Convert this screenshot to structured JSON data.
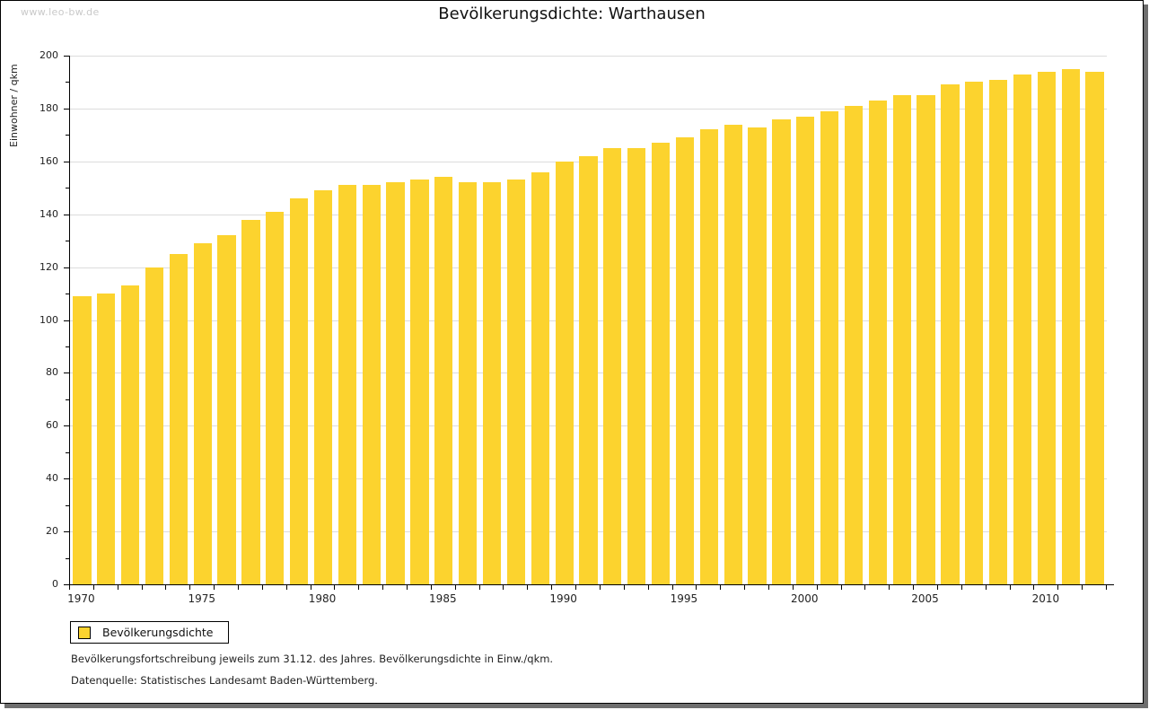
{
  "watermark": "www.leo-bw.de",
  "title": "Bevölkerungsdichte: Warthausen",
  "legend": {
    "label": "Bevölkerungsdichte",
    "swatch_color": "#fcd32e"
  },
  "footnotes": {
    "line1": "Bevölkerungsfortschreibung jeweils zum 31.12. des Jahres. Bevölkerungsdichte in Einw./qkm.",
    "line2": "Datenquelle: Statistisches Landesamt Baden-Württemberg."
  },
  "colors": {
    "bar": "#fcd32e",
    "gridline": "#dcdcdc",
    "axis": "#000000",
    "watermark": "#c9c9c9",
    "shadow": "#6e6e6e"
  },
  "chart_data": {
    "type": "bar",
    "title": "Bevölkerungsdichte: Warthausen",
    "xlabel": "",
    "ylabel": "Einwohner / qkm",
    "ylim": [
      0,
      200
    ],
    "y_major_step": 20,
    "y_minor_step": 10,
    "grid": "horizontal",
    "legend_position": "bottom-left",
    "series_name": "Bevölkerungsdichte",
    "x_tick_labels": [
      "1970",
      "1975",
      "1980",
      "1985",
      "1990",
      "1995",
      "2000",
      "2005",
      "2010"
    ],
    "categories": [
      1970,
      1971,
      1972,
      1973,
      1974,
      1975,
      1976,
      1977,
      1978,
      1979,
      1980,
      1981,
      1982,
      1983,
      1984,
      1985,
      1986,
      1987,
      1988,
      1989,
      1990,
      1991,
      1992,
      1993,
      1994,
      1995,
      1996,
      1997,
      1998,
      1999,
      2000,
      2001,
      2002,
      2003,
      2004,
      2005,
      2006,
      2007,
      2008,
      2009,
      2010,
      2011,
      2012
    ],
    "values": [
      109,
      110,
      113,
      120,
      125,
      129,
      132,
      138,
      141,
      146,
      149,
      151,
      151,
      152,
      153,
      154,
      152,
      152,
      153,
      156,
      160,
      162,
      165,
      165,
      167,
      169,
      172,
      174,
      173,
      176,
      177,
      179,
      181,
      183,
      185,
      185,
      189,
      190,
      191,
      193,
      194,
      195,
      194
    ]
  }
}
